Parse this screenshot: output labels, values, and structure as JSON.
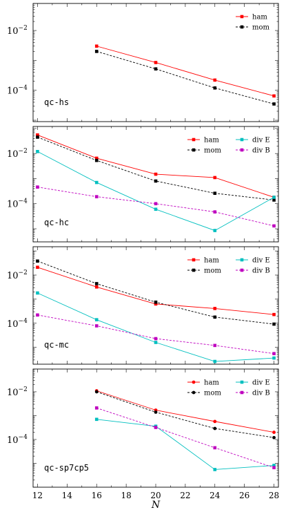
{
  "chart_data": [
    {
      "type": "line",
      "tag": "qc-hs",
      "yscale": "log",
      "ylim": [
        9e-06,
        0.08
      ],
      "ytick_labels": [
        {
          "value": 0.01,
          "base": "10",
          "exp": "−2"
        },
        {
          "value": 0.0001,
          "base": "10",
          "exp": "−4"
        }
      ],
      "legend_position": "top-right",
      "legend_columns": 1,
      "series": [
        {
          "name": "ham",
          "color": "#ff0000",
          "dash": "solid",
          "marker": "square",
          "x": [
            16,
            20,
            24,
            28
          ],
          "values": [
            0.003,
            0.00085,
            0.00022,
            6.5e-05
          ]
        },
        {
          "name": "mom",
          "color": "#000000",
          "dash": "dashed",
          "marker": "square",
          "x": [
            16,
            20,
            24,
            28
          ],
          "values": [
            0.002,
            0.00052,
            0.00012,
            3.5e-05
          ]
        }
      ]
    },
    {
      "type": "line",
      "tag": "qc-hc",
      "yscale": "log",
      "ylim": [
        3e-06,
        0.12
      ],
      "ytick_labels": [
        {
          "value": 0.01,
          "base": "10",
          "exp": "−2"
        },
        {
          "value": 0.0001,
          "base": "10",
          "exp": "−4"
        }
      ],
      "legend_position": "top-right",
      "legend_columns": 2,
      "series": [
        {
          "name": "ham",
          "color": "#ff0000",
          "dash": "solid",
          "marker": "square",
          "x": [
            12,
            16,
            20,
            24,
            28
          ],
          "values": [
            0.055,
            0.0065,
            0.0015,
            0.0011,
            0.00018
          ]
        },
        {
          "name": "mom",
          "color": "#000000",
          "dash": "dashed",
          "marker": "square",
          "x": [
            12,
            16,
            20,
            24,
            28
          ],
          "values": [
            0.045,
            0.0053,
            0.0008,
            0.00026,
            0.00014
          ]
        },
        {
          "name": "div E",
          "color": "#00bfbf",
          "dash": "solid",
          "marker": "square",
          "x": [
            12,
            16,
            20,
            24,
            28
          ],
          "values": [
            0.012,
            0.0007,
            6e-05,
            8.5e-06,
            0.00018
          ]
        },
        {
          "name": "div B",
          "color": "#bf00bf",
          "dash": "dashed",
          "marker": "square",
          "x": [
            12,
            16,
            20,
            24,
            28
          ],
          "values": [
            0.00046,
            0.00019,
            0.0001,
            4.7e-05,
            1.3e-05
          ]
        }
      ]
    },
    {
      "type": "line",
      "tag": "qc-mc",
      "yscale": "log",
      "ylim": [
        2e-06,
        0.15
      ],
      "ytick_labels": [
        {
          "value": 0.01,
          "base": "10",
          "exp": "−2"
        },
        {
          "value": 0.0001,
          "base": "10",
          "exp": "−4"
        }
      ],
      "legend_position": "top-right",
      "legend_columns": 2,
      "series": [
        {
          "name": "ham",
          "color": "#ff0000",
          "dash": "solid",
          "marker": "square",
          "x": [
            12,
            16,
            20,
            24,
            28
          ],
          "values": [
            0.021,
            0.0032,
            0.00063,
            0.00041,
            0.00023
          ]
        },
        {
          "name": "mom",
          "color": "#000000",
          "dash": "dashed",
          "marker": "square",
          "x": [
            12,
            16,
            20,
            24,
            28
          ],
          "values": [
            0.038,
            0.0044,
            0.00075,
            0.00018,
            9.2e-05
          ]
        },
        {
          "name": "div E",
          "color": "#00bfbf",
          "dash": "solid",
          "marker": "square",
          "x": [
            12,
            16,
            20,
            24,
            28
          ],
          "values": [
            0.0018,
            0.00014,
            1.6e-05,
            2.6e-06,
            3.6e-06
          ]
        },
        {
          "name": "div B",
          "color": "#bf00bf",
          "dash": "dashed",
          "marker": "square",
          "x": [
            12,
            16,
            20,
            24,
            28
          ],
          "values": [
            0.00022,
            7.8e-05,
            2.3e-05,
            1.2e-05,
            5.5e-06
          ]
        }
      ]
    },
    {
      "type": "line",
      "tag": "qc-sp7cp5",
      "yscale": "log",
      "ylim": [
        1e-06,
        0.09
      ],
      "ytick_labels": [
        {
          "value": 0.01,
          "base": "10",
          "exp": "−2"
        },
        {
          "value": 0.0001,
          "base": "10",
          "exp": "−4"
        }
      ],
      "legend_position": "top-right",
      "legend_columns": 2,
      "xlabel": "N",
      "xtick_labels": [
        "12",
        "14",
        "16",
        "18",
        "20",
        "22",
        "24",
        "26",
        "28"
      ],
      "series": [
        {
          "name": "ham",
          "color": "#ff0000",
          "dash": "solid",
          "marker": "circle",
          "x": [
            16,
            20,
            24,
            28
          ],
          "values": [
            0.011,
            0.0017,
            0.00057,
            0.0002
          ]
        },
        {
          "name": "mom",
          "color": "#000000",
          "dash": "dashed",
          "marker": "circle",
          "x": [
            16,
            20,
            24,
            28
          ],
          "values": [
            0.01,
            0.0014,
            0.00029,
            0.00012
          ]
        },
        {
          "name": "div E",
          "color": "#00bfbf",
          "dash": "solid",
          "marker": "square",
          "x": [
            16,
            20,
            24,
            28
          ],
          "values": [
            0.0007,
            0.00036,
            5.5e-06,
            8.2e-06
          ]
        },
        {
          "name": "div B",
          "color": "#bf00bf",
          "dash": "dashed",
          "marker": "square",
          "x": [
            16,
            20,
            24,
            28
          ],
          "values": [
            0.0021,
            0.00032,
            4.5e-05,
            6.6e-06
          ]
        }
      ]
    }
  ]
}
